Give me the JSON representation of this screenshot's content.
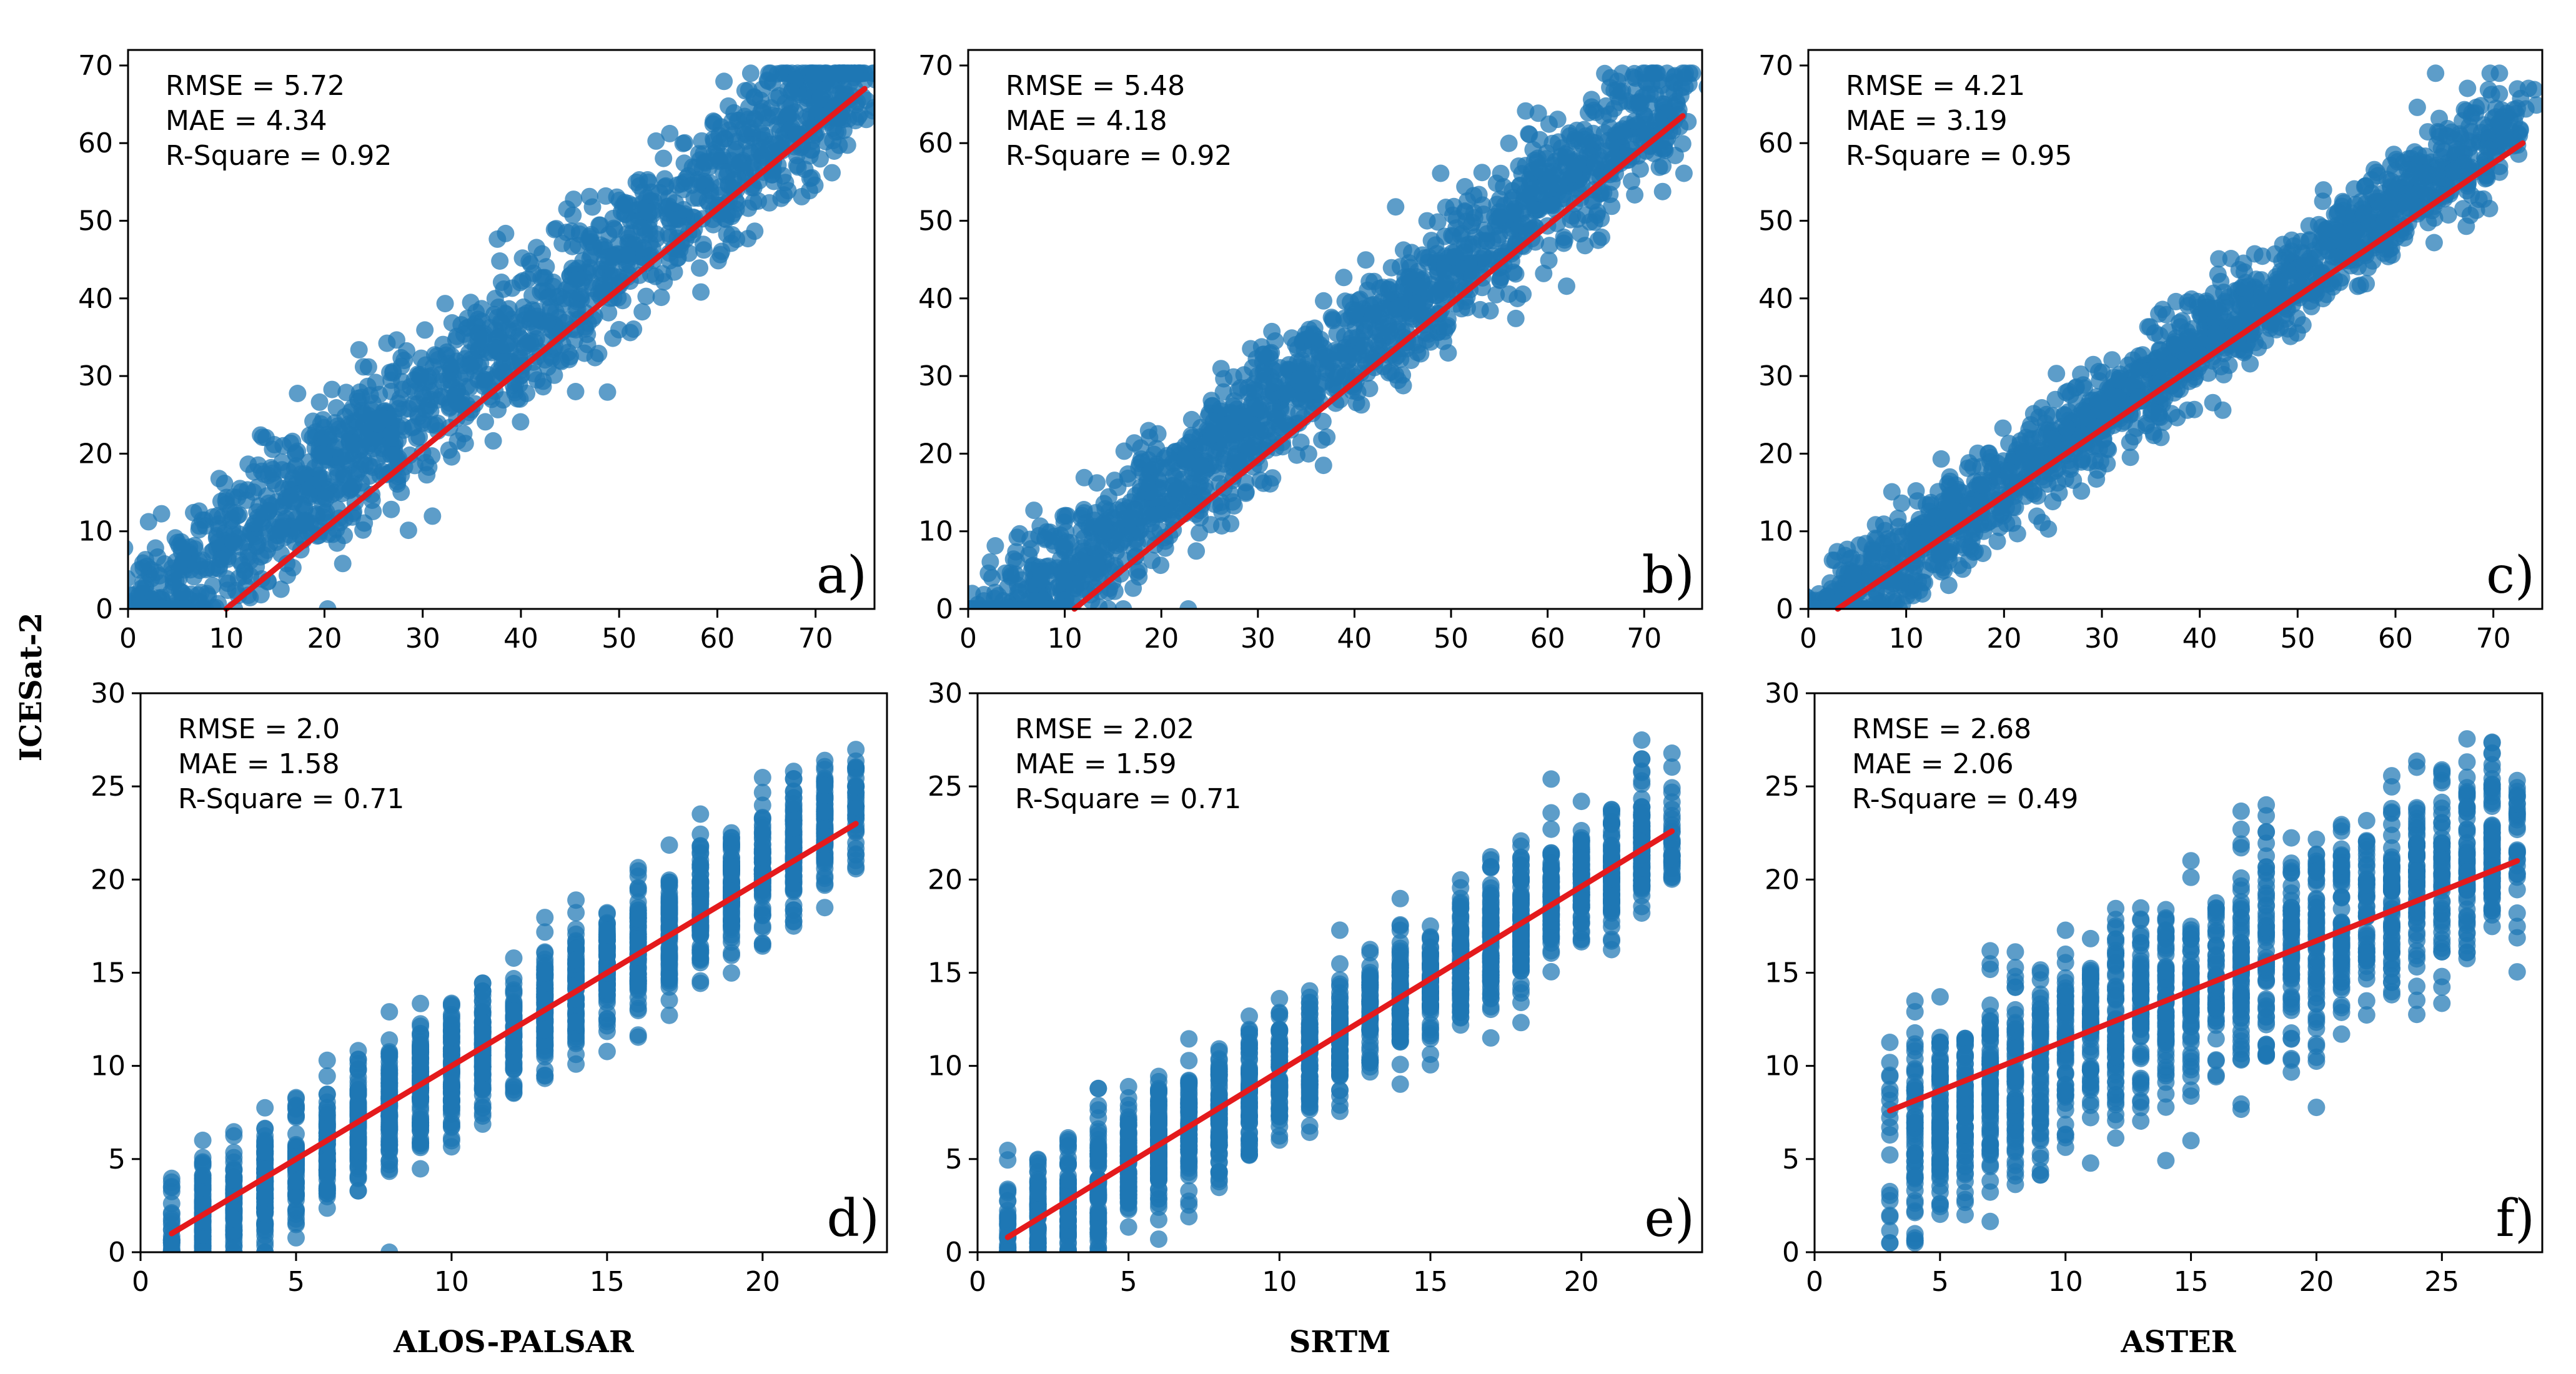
{
  "figure": {
    "ylabel": "ICESat-2",
    "colors": {
      "points": "#1f77b4",
      "fit": "#e41a1c"
    }
  },
  "chart_data": [
    {
      "type": "scatter",
      "panel_label": "a)",
      "xlabel": "",
      "ylabel": "",
      "xlim": [
        0,
        76
      ],
      "ylim": [
        0,
        72
      ],
      "xticks": [
        0,
        10,
        20,
        30,
        40,
        50,
        60,
        70
      ],
      "yticks": [
        0,
        10,
        20,
        30,
        40,
        50,
        60,
        70
      ],
      "stats": [
        "RMSE = 5.72",
        "MAE = 4.34",
        "R-Square = 0.92"
      ],
      "fit_line": {
        "x": [
          10,
          75
        ],
        "y": [
          0,
          67
        ]
      },
      "cloud": {
        "x_range": [
          0,
          75
        ],
        "spread": 9,
        "slope": 0.95,
        "intercept": -2,
        "ymin": 0,
        "ymax": 69
      }
    },
    {
      "type": "scatter",
      "panel_label": "b)",
      "xlabel": "",
      "ylabel": "",
      "xlim": [
        0,
        76
      ],
      "ylim": [
        0,
        72
      ],
      "xticks": [
        0,
        10,
        20,
        30,
        40,
        50,
        60,
        70
      ],
      "yticks": [
        0,
        10,
        20,
        30,
        40,
        50,
        60,
        70
      ],
      "stats": [
        "RMSE = 5.48",
        "MAE = 4.18",
        "R-Square = 0.92"
      ],
      "fit_line": {
        "x": [
          11,
          74
        ],
        "y": [
          0,
          63.5
        ]
      },
      "cloud": {
        "x_range": [
          0,
          74
        ],
        "spread": 8,
        "slope": 0.97,
        "intercept": -5,
        "ymin": 0,
        "ymax": 69
      }
    },
    {
      "type": "scatter",
      "panel_label": "c)",
      "xlabel": "",
      "ylabel": "",
      "xlim": [
        0,
        75
      ],
      "ylim": [
        0,
        72
      ],
      "xticks": [
        0,
        10,
        20,
        30,
        40,
        50,
        60,
        70
      ],
      "yticks": [
        0,
        10,
        20,
        30,
        40,
        50,
        60,
        70
      ],
      "stats": [
        "RMSE = 4.21",
        "MAE = 3.19",
        "R-Square = 0.95"
      ],
      "fit_line": {
        "x": [
          3,
          73
        ],
        "y": [
          0,
          60
        ]
      },
      "cloud": {
        "x_range": [
          0,
          73
        ],
        "spread": 6,
        "slope": 0.9,
        "intercept": -2,
        "ymin": 0,
        "ymax": 69
      }
    },
    {
      "type": "scatter",
      "panel_label": "d)",
      "xlabel": "ALOS-PALSAR",
      "ylabel": "",
      "xlim": [
        0,
        24
      ],
      "ylim": [
        0,
        30
      ],
      "xticks": [
        0,
        5,
        10,
        15,
        20
      ],
      "yticks": [
        0,
        5,
        10,
        15,
        20,
        25,
        30
      ],
      "stats": [
        "RMSE = 2.0",
        "MAE = 1.58",
        "R-Square = 0.71"
      ],
      "fit_line": {
        "x": [
          1,
          23
        ],
        "y": [
          1,
          23
        ]
      },
      "cloud": {
        "x_range": [
          1,
          23
        ],
        "spread": 3.5,
        "slope": 1.05,
        "intercept": -0.5,
        "ymin": 0,
        "ymax": 28.5,
        "discrete": true
      }
    },
    {
      "type": "scatter",
      "panel_label": "e)",
      "xlabel": "SRTM",
      "ylabel": "",
      "xlim": [
        0,
        24
      ],
      "ylim": [
        0,
        30
      ],
      "xticks": [
        0,
        5,
        10,
        15,
        20
      ],
      "yticks": [
        0,
        5,
        10,
        15,
        20,
        25,
        30
      ],
      "stats": [
        "RMSE = 2.02",
        "MAE = 1.59",
        "R-Square = 0.71"
      ],
      "fit_line": {
        "x": [
          1,
          23
        ],
        "y": [
          0.8,
          22.6
        ]
      },
      "cloud": {
        "x_range": [
          1,
          23
        ],
        "spread": 3.5,
        "slope": 1.0,
        "intercept": -0.3,
        "ymin": 0,
        "ymax": 28.5,
        "discrete": true
      }
    },
    {
      "type": "scatter",
      "panel_label": "f)",
      "xlabel": "ASTER",
      "ylabel": "",
      "xlim": [
        0,
        29
      ],
      "ylim": [
        0,
        30
      ],
      "xticks": [
        0,
        5,
        10,
        15,
        20,
        25
      ],
      "yticks": [
        0,
        5,
        10,
        15,
        20,
        25,
        30
      ],
      "stats": [
        "RMSE = 2.68",
        "MAE = 2.06",
        "R-Square = 0.49"
      ],
      "fit_line": {
        "x": [
          3,
          28
        ],
        "y": [
          7.6,
          21
        ]
      },
      "cloud": {
        "x_range": [
          3,
          28
        ],
        "spread": 5.5,
        "slope": 0.62,
        "intercept": 4.5,
        "ymin": 0.5,
        "ymax": 28.5,
        "discrete": true
      }
    }
  ]
}
